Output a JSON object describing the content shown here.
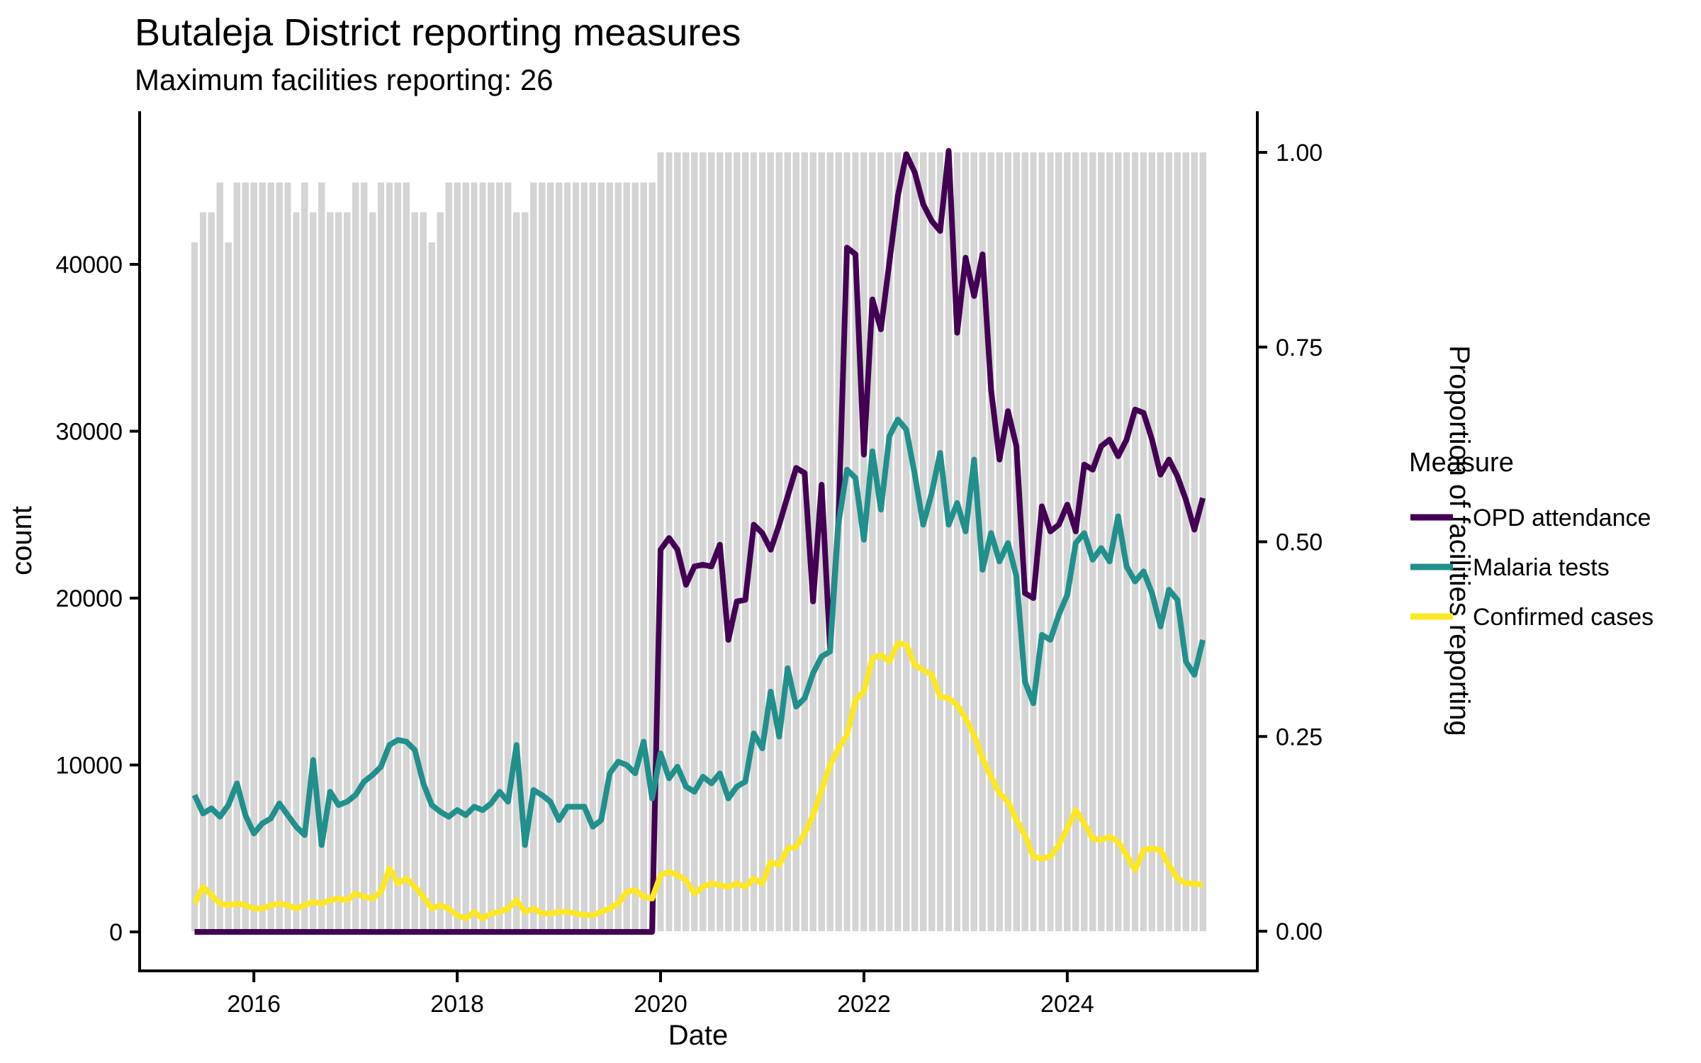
{
  "chart_data": {
    "type": "line",
    "title": "Butaleja District reporting measures",
    "subtitle": "Maximum facilities reporting: 26",
    "xlabel": "Date",
    "start_month": "2015-06",
    "months": [
      "2015-06",
      "2015-07",
      "2015-08",
      "2015-09",
      "2015-10",
      "2015-11",
      "2015-12",
      "2016-01",
      "2016-02",
      "2016-03",
      "2016-04",
      "2016-05",
      "2016-06",
      "2016-07",
      "2016-08",
      "2016-09",
      "2016-10",
      "2016-11",
      "2016-12",
      "2017-01",
      "2017-02",
      "2017-03",
      "2017-04",
      "2017-05",
      "2017-06",
      "2017-07",
      "2017-08",
      "2017-09",
      "2017-10",
      "2017-11",
      "2017-12",
      "2018-01",
      "2018-02",
      "2018-03",
      "2018-04",
      "2018-05",
      "2018-06",
      "2018-07",
      "2018-08",
      "2018-09",
      "2018-10",
      "2018-11",
      "2018-12",
      "2019-01",
      "2019-02",
      "2019-03",
      "2019-04",
      "2019-05",
      "2019-06",
      "2019-07",
      "2019-08",
      "2019-09",
      "2019-10",
      "2019-11",
      "2019-12",
      "2020-01",
      "2020-02",
      "2020-03",
      "2020-04",
      "2020-05",
      "2020-06",
      "2020-07",
      "2020-08",
      "2020-09",
      "2020-10",
      "2020-11",
      "2020-12",
      "2021-01",
      "2021-02",
      "2021-03",
      "2021-04",
      "2021-05",
      "2021-06",
      "2021-07",
      "2021-08",
      "2021-09",
      "2021-10",
      "2021-11",
      "2021-12",
      "2022-01",
      "2022-02",
      "2022-03",
      "2022-04",
      "2022-05",
      "2022-06",
      "2022-07",
      "2022-08",
      "2022-09",
      "2022-10",
      "2022-11",
      "2022-12",
      "2023-01",
      "2023-02",
      "2023-03",
      "2023-04",
      "2023-05",
      "2023-06",
      "2023-07",
      "2023-08",
      "2023-09",
      "2023-10",
      "2023-11",
      "2023-12",
      "2024-01",
      "2024-02",
      "2024-03",
      "2024-04",
      "2024-05",
      "2024-06",
      "2024-07",
      "2024-08",
      "2024-09",
      "2024-10",
      "2024-11",
      "2024-12",
      "2025-01",
      "2025-02",
      "2025-03",
      "2025-04",
      "2025-05"
    ],
    "bars": {
      "name": "Proportion of facilities reporting",
      "max_facilities": 26,
      "color": "#d4d4d4",
      "facilities_reporting": [
        23,
        24,
        24,
        25,
        23,
        25,
        25,
        25,
        25,
        25,
        25,
        25,
        24,
        25,
        24,
        25,
        24,
        24,
        24,
        25,
        25,
        24,
        25,
        25,
        25,
        25,
        24,
        24,
        23,
        24,
        25,
        25,
        25,
        25,
        25,
        25,
        25,
        25,
        24,
        24,
        25,
        25,
        25,
        25,
        25,
        25,
        25,
        25,
        25,
        25,
        25,
        25,
        25,
        25,
        25,
        26,
        26,
        26,
        26,
        26,
        26,
        26,
        26,
        26,
        26,
        26,
        26,
        26,
        26,
        26,
        26,
        26,
        26,
        26,
        26,
        26,
        26,
        26,
        26,
        26,
        26,
        26,
        26,
        26,
        26,
        26,
        26,
        26,
        26,
        26,
        26,
        26,
        26,
        26,
        26,
        26,
        26,
        26,
        26,
        26,
        26,
        26,
        26,
        26,
        26,
        26,
        26,
        26,
        26,
        26,
        26,
        26,
        26,
        26,
        26,
        26,
        26,
        26,
        26,
        26
      ]
    },
    "series": [
      {
        "name": "OPD attendance",
        "color": "#440154",
        "values": [
          0,
          0,
          0,
          0,
          0,
          0,
          0,
          0,
          0,
          0,
          0,
          0,
          0,
          0,
          0,
          0,
          0,
          0,
          0,
          0,
          0,
          0,
          0,
          0,
          0,
          0,
          0,
          0,
          0,
          0,
          0,
          0,
          0,
          0,
          0,
          0,
          0,
          0,
          0,
          0,
          0,
          0,
          0,
          0,
          0,
          0,
          0,
          0,
          0,
          0,
          0,
          0,
          0,
          0,
          0,
          22900,
          23600,
          22900,
          20800,
          21900,
          22000,
          21900,
          23200,
          17500,
          19800,
          19900,
          24400,
          23900,
          22900,
          24400,
          26100,
          27800,
          27500,
          19800,
          26800,
          17000,
          24700,
          41000,
          40600,
          28600,
          37900,
          36100,
          40100,
          44100,
          46600,
          45500,
          43600,
          42600,
          42000,
          46800,
          35900,
          40400,
          38100,
          40600,
          32500,
          28300,
          31200,
          29100,
          20300,
          20000,
          25500,
          24000,
          24400,
          25600,
          24000,
          28000,
          27700,
          29100,
          29500,
          28500,
          29500,
          31300,
          31100,
          29500,
          27400,
          28300,
          27300,
          25900,
          24100,
          26000
        ]
      },
      {
        "name": "Malaria tests",
        "color": "#21908c",
        "values": [
          8200,
          7100,
          7400,
          6900,
          7600,
          8900,
          7000,
          5900,
          6500,
          6800,
          7700,
          7000,
          6300,
          5800,
          10300,
          5200,
          8400,
          7600,
          7800,
          8200,
          9000,
          9400,
          9900,
          11200,
          11500,
          11400,
          10900,
          8900,
          7600,
          7200,
          6900,
          7300,
          7000,
          7500,
          7300,
          7700,
          8400,
          7800,
          11200,
          5200,
          8500,
          8200,
          7800,
          6700,
          7500,
          7500,
          7500,
          6300,
          6700,
          9500,
          10200,
          10000,
          9500,
          11400,
          8000,
          10700,
          9200,
          9900,
          8700,
          8400,
          9300,
          8900,
          9500,
          8000,
          8700,
          9000,
          11900,
          11000,
          14400,
          11700,
          15800,
          13500,
          14000,
          15500,
          16500,
          16800,
          24500,
          27700,
          27200,
          23500,
          28800,
          25300,
          29700,
          30700,
          30100,
          27400,
          24400,
          26300,
          28700,
          24400,
          25700,
          24000,
          28300,
          21700,
          23900,
          22200,
          23300,
          21300,
          15000,
          13700,
          17800,
          17500,
          19000,
          20200,
          23300,
          23900,
          22300,
          23000,
          22200,
          24900,
          21900,
          21000,
          21600,
          20300,
          18300,
          20500,
          19900,
          16200,
          15400,
          17500
        ]
      },
      {
        "name": "Confirmed cases",
        "color": "#fde725",
        "values": [
          1700,
          2700,
          2200,
          1700,
          1600,
          1700,
          1600,
          1400,
          1400,
          1600,
          1700,
          1600,
          1400,
          1600,
          1800,
          1700,
          1900,
          2000,
          1900,
          2300,
          2100,
          2000,
          2400,
          3800,
          2900,
          3200,
          2700,
          2100,
          1400,
          1600,
          1400,
          1000,
          800,
          1200,
          800,
          1100,
          1200,
          1400,
          1900,
          1200,
          1400,
          1100,
          1100,
          1200,
          1200,
          1100,
          1000,
          1000,
          1200,
          1400,
          1700,
          2400,
          2500,
          2100,
          2000,
          3400,
          3600,
          3400,
          3100,
          2300,
          2700,
          2900,
          2800,
          2700,
          2900,
          2700,
          3200,
          2900,
          4200,
          4000,
          5000,
          5100,
          5900,
          7000,
          8500,
          10000,
          11000,
          11800,
          13900,
          14400,
          16400,
          16600,
          16200,
          17300,
          17200,
          16000,
          15700,
          15400,
          14100,
          14000,
          13600,
          12800,
          11800,
          10400,
          9300,
          8300,
          7800,
          6700,
          5800,
          4500,
          4400,
          4500,
          5200,
          6200,
          7300,
          6500,
          5600,
          5500,
          5700,
          5400,
          4600,
          3700,
          4900,
          5000,
          4900,
          4000,
          3200,
          2900,
          2900,
          2800
        ]
      }
    ],
    "y_left": {
      "label": "count",
      "ticks": [
        0,
        10000,
        20000,
        30000,
        40000
      ],
      "tick_labels": [
        "0",
        "10000",
        "20000",
        "30000",
        "40000"
      ],
      "range": [
        0,
        46800
      ]
    },
    "y_right": {
      "label": "Proportion of facilities reporting",
      "ticks": [
        0,
        0.25,
        0.5,
        0.75,
        1
      ],
      "tick_labels": [
        "0.00",
        "0.25",
        "0.50",
        "0.75",
        "1.00"
      ],
      "range": [
        0,
        1
      ]
    },
    "x_ticks": [
      {
        "label": "2016",
        "month_index": 7
      },
      {
        "label": "2018",
        "month_index": 31
      },
      {
        "label": "2020",
        "month_index": 55
      },
      {
        "label": "2022",
        "month_index": 79
      },
      {
        "label": "2024",
        "month_index": 103
      }
    ],
    "legend": {
      "title": "Measure"
    },
    "layout_hints": {
      "grid": false,
      "legend_position": "right",
      "bars_behind_lines": true
    }
  }
}
